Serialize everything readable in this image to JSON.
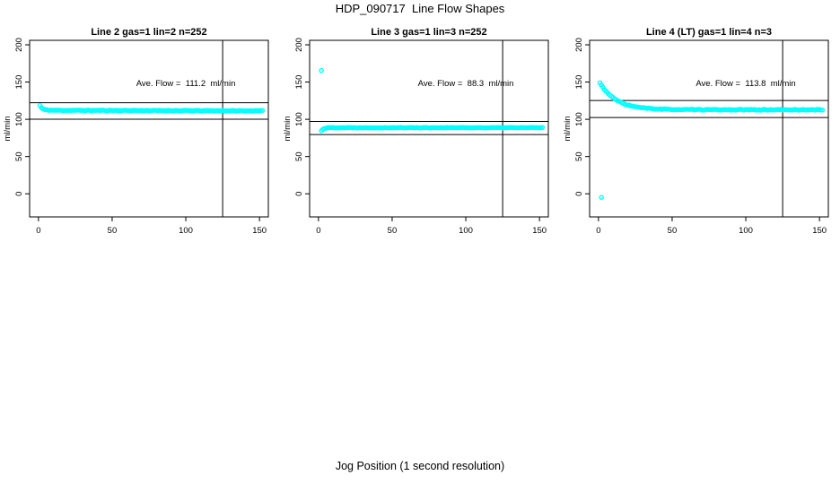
{
  "figure": {
    "title": "HDP_090717  Line Flow Shapes",
    "xlabel": "Jog Position (1 second resolution)",
    "background_color": "#ffffff",
    "point_color": "#00ffff",
    "axis_color": "#000000"
  },
  "chart_data": [
    {
      "type": "scatter",
      "title": "Line 2 gas=1 lin=2 n=252",
      "annotation": "Ave. Flow =  111.2  ml/min",
      "ave_flow_ml_min": 111.2,
      "n": 252,
      "ylabel": "ml/min",
      "xlim": [
        -6,
        156
      ],
      "ylim": [
        -31,
        206
      ],
      "x_ticks": [
        0,
        50,
        100,
        150
      ],
      "y_ticks": [
        0,
        50,
        100,
        150,
        200
      ],
      "hlines": [
        122.3,
        100.1
      ],
      "vline": 125,
      "annotation_pos": {
        "x": 100,
        "y": 148
      },
      "series_model": {
        "x_start": 1,
        "x_end": 152,
        "start_value": 118.5,
        "settle_value": 112.2,
        "decay_tau": 1.6,
        "noise_sd": 0.45,
        "drift": -0.005
      },
      "outliers": [],
      "seed": 11
    },
    {
      "type": "scatter",
      "title": "Line 3 gas=1 lin=3 n=252",
      "annotation": "Ave. Flow =  88.3  ml/min",
      "ave_flow_ml_min": 88.3,
      "n": 252,
      "ylabel": "ml/min",
      "xlim": [
        -6,
        156
      ],
      "ylim": [
        -31,
        206
      ],
      "x_ticks": [
        0,
        50,
        100,
        150
      ],
      "y_ticks": [
        0,
        50,
        100,
        150,
        200
      ],
      "hlines": [
        97.1,
        79.5
      ],
      "vline": 125,
      "annotation_pos": {
        "x": 100,
        "y": 148
      },
      "series_model": {
        "x_start": 2,
        "x_end": 152,
        "start_value": 84.5,
        "settle_value": 88.8,
        "decay_tau": 1.3,
        "noise_sd": 0.4,
        "drift": 0
      },
      "outliers": [
        [
          2,
          165.5
        ]
      ],
      "seed": 22
    },
    {
      "type": "scatter",
      "title": "Line 4 (LT) gas=1 lin=4 n=3",
      "annotation": "Ave. Flow =  113.8  ml/min",
      "ave_flow_ml_min": 113.8,
      "n": 3,
      "ylabel": "ml/min",
      "xlim": [
        -6,
        156
      ],
      "ylim": [
        -31,
        206
      ],
      "x_ticks": [
        0,
        50,
        100,
        150
      ],
      "y_ticks": [
        0,
        50,
        100,
        150,
        200
      ],
      "hlines": [
        125.2,
        102.4
      ],
      "vline": 125,
      "annotation_pos": {
        "x": 100,
        "y": 148
      },
      "series_model": {
        "x_start": 1,
        "x_end": 152,
        "start_value": 149,
        "settle_value": 112.8,
        "decay_tau": 11,
        "noise_sd": 0.55,
        "drift": 0
      },
      "outliers": [
        [
          2,
          -4.8
        ]
      ],
      "seed": 33
    }
  ]
}
